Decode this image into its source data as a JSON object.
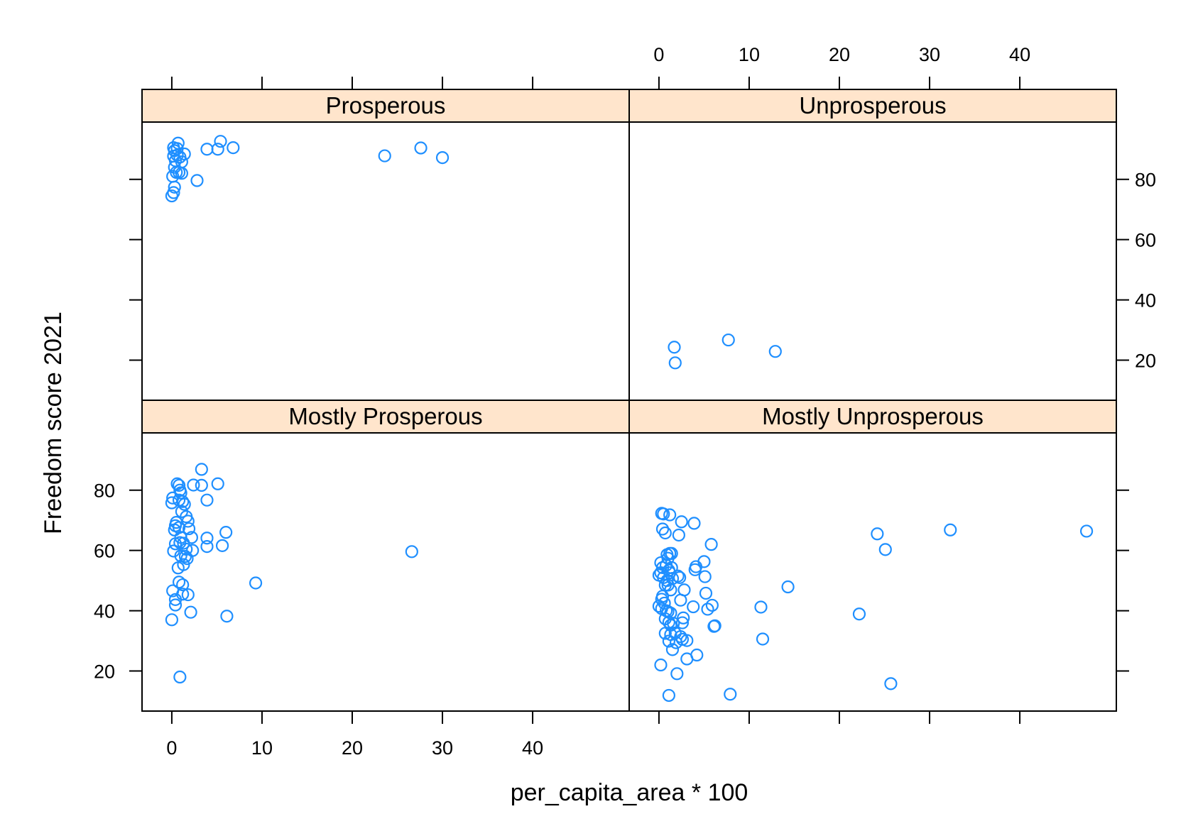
{
  "chart_data": {
    "type": "scatter",
    "layout": "2x2 trellis (lattice xyplot)",
    "xlabel": "per_capita_area * 100",
    "ylabel": "Freedom score 2021",
    "xlim": [
      -3.3,
      50.7
    ],
    "ylim": [
      6.7,
      99
    ],
    "x_ticks": [
      0,
      10,
      20,
      30,
      40
    ],
    "y_ticks": [
      20,
      40,
      60,
      80
    ],
    "grid": false,
    "colors": {
      "point": "#1f8fff",
      "strip": "#ffe5cc",
      "frame": "#000000"
    },
    "panels": [
      {
        "name": "Prosperous",
        "row": 0,
        "col": 0,
        "points": [
          [
            0.0,
            74.5
          ],
          [
            0.2,
            75.6
          ],
          [
            0.3,
            77.4
          ],
          [
            0.1,
            81.0
          ],
          [
            0.5,
            82.3
          ],
          [
            0.3,
            84.0
          ],
          [
            0.4,
            86.2
          ],
          [
            0.2,
            87.7
          ],
          [
            0.3,
            89.5
          ],
          [
            0.2,
            90.5
          ],
          [
            0.6,
            90.2
          ],
          [
            0.7,
            92.0
          ],
          [
            0.6,
            88.0
          ],
          [
            0.9,
            87.4
          ],
          [
            1.1,
            85.8
          ],
          [
            0.8,
            82.3
          ],
          [
            1.1,
            82.0
          ],
          [
            1.4,
            88.4
          ],
          [
            2.8,
            79.6
          ],
          [
            3.9,
            90.0
          ],
          [
            5.1,
            90.0
          ],
          [
            5.4,
            92.6
          ],
          [
            6.8,
            90.5
          ],
          [
            23.6,
            87.8
          ],
          [
            27.6,
            90.4
          ],
          [
            30.0,
            87.2
          ]
        ]
      },
      {
        "name": "Unprosperous",
        "row": 0,
        "col": 1,
        "points": [
          [
            1.7,
            24.3
          ],
          [
            1.8,
            19.1
          ],
          [
            7.7,
            26.7
          ],
          [
            12.9,
            22.9
          ]
        ]
      },
      {
        "name": "Mostly Prosperous",
        "row": 1,
        "col": 0,
        "points": [
          [
            0.0,
            37.0
          ],
          [
            0.1,
            46.6
          ],
          [
            0.4,
            41.9
          ],
          [
            0.4,
            43.7
          ],
          [
            0.2,
            59.8
          ],
          [
            0.4,
            62.2
          ],
          [
            0.3,
            66.8
          ],
          [
            0.4,
            68.2
          ],
          [
            0.5,
            69.3
          ],
          [
            0.0,
            75.8
          ],
          [
            0.1,
            77.4
          ],
          [
            0.6,
            82.1
          ],
          [
            0.8,
            81.6
          ],
          [
            0.9,
            80.0
          ],
          [
            1.0,
            79.1
          ],
          [
            0.8,
            76.7
          ],
          [
            1.2,
            76.2
          ],
          [
            1.4,
            75.3
          ],
          [
            1.1,
            72.9
          ],
          [
            1.6,
            71.2
          ],
          [
            1.8,
            69.7
          ],
          [
            1.9,
            67.2
          ],
          [
            0.8,
            67.6
          ],
          [
            1.0,
            64.3
          ],
          [
            0.9,
            62.6
          ],
          [
            1.3,
            62.4
          ],
          [
            1.6,
            60.4
          ],
          [
            1.0,
            58.2
          ],
          [
            1.5,
            58.0
          ],
          [
            1.7,
            57.3
          ],
          [
            1.3,
            55.3
          ],
          [
            0.7,
            54.2
          ],
          [
            0.8,
            49.5
          ],
          [
            1.2,
            48.6
          ],
          [
            1.2,
            45.5
          ],
          [
            1.8,
            45.3
          ],
          [
            2.1,
            39.5
          ],
          [
            0.9,
            18.0
          ],
          [
            2.2,
            64.3
          ],
          [
            2.3,
            60.0
          ],
          [
            2.4,
            81.7
          ],
          [
            3.3,
            86.9
          ],
          [
            3.3,
            81.6
          ],
          [
            3.9,
            76.7
          ],
          [
            3.9,
            64.1
          ],
          [
            3.9,
            61.3
          ],
          [
            5.1,
            82.1
          ],
          [
            5.6,
            61.6
          ],
          [
            6.0,
            66.0
          ],
          [
            6.1,
            38.2
          ],
          [
            9.3,
            49.2
          ],
          [
            26.6,
            59.6
          ]
        ]
      },
      {
        "name": "Mostly Unprosperous",
        "row": 1,
        "col": 1,
        "points": [
          [
            0.2,
            22.0
          ],
          [
            0.0,
            41.5
          ],
          [
            0.3,
            40.7
          ],
          [
            0.3,
            43.8
          ],
          [
            0.4,
            44.8
          ],
          [
            0.0,
            51.8
          ],
          [
            0.2,
            52.6
          ],
          [
            0.2,
            55.9
          ],
          [
            0.4,
            54.3
          ],
          [
            0.5,
            51.0
          ],
          [
            0.4,
            67.1
          ],
          [
            0.3,
            72.3
          ],
          [
            0.5,
            72.1
          ],
          [
            0.7,
            65.8
          ],
          [
            1.2,
            71.8
          ],
          [
            0.9,
            58.6
          ],
          [
            1.0,
            57.4
          ],
          [
            1.2,
            59.0
          ],
          [
            1.4,
            59.0
          ],
          [
            0.8,
            55.1
          ],
          [
            1.1,
            53.4
          ],
          [
            1.2,
            52.6
          ],
          [
            1.4,
            54.3
          ],
          [
            1.5,
            50.7
          ],
          [
            0.9,
            50.0
          ],
          [
            0.7,
            48.5
          ],
          [
            1.0,
            48.5
          ],
          [
            1.3,
            46.9
          ],
          [
            0.6,
            42.5
          ],
          [
            0.8,
            40.0
          ],
          [
            1.0,
            39.7
          ],
          [
            1.3,
            39.2
          ],
          [
            0.7,
            37.3
          ],
          [
            1.1,
            36.2
          ],
          [
            1.3,
            35.2
          ],
          [
            1.6,
            35.8
          ],
          [
            0.7,
            32.5
          ],
          [
            1.3,
            32.1
          ],
          [
            1.8,
            32.6
          ],
          [
            1.1,
            29.9
          ],
          [
            1.5,
            27.1
          ],
          [
            1.9,
            29.4
          ],
          [
            1.1,
            11.9
          ],
          [
            2.0,
            19.1
          ],
          [
            2.1,
            51.5
          ],
          [
            2.3,
            51.0
          ],
          [
            2.4,
            43.5
          ],
          [
            2.8,
            46.9
          ],
          [
            2.2,
            65.1
          ],
          [
            2.5,
            69.5
          ],
          [
            2.7,
            37.6
          ],
          [
            2.4,
            31.4
          ],
          [
            2.6,
            36.0
          ],
          [
            3.1,
            30.1
          ],
          [
            3.1,
            24.0
          ],
          [
            2.6,
            30.5
          ],
          [
            3.8,
            41.3
          ],
          [
            4.1,
            54.6
          ],
          [
            4.0,
            53.6
          ],
          [
            4.2,
            25.3
          ],
          [
            3.9,
            69.0
          ],
          [
            5.0,
            56.3
          ],
          [
            5.1,
            51.3
          ],
          [
            5.2,
            45.8
          ],
          [
            5.4,
            40.5
          ],
          [
            5.9,
            41.8
          ],
          [
            6.2,
            35.0
          ],
          [
            6.1,
            34.8
          ],
          [
            5.8,
            62.0
          ],
          [
            7.9,
            12.3
          ],
          [
            11.3,
            41.2
          ],
          [
            11.5,
            30.6
          ],
          [
            14.3,
            47.9
          ],
          [
            22.2,
            38.9
          ],
          [
            24.2,
            65.5
          ],
          [
            25.1,
            60.3
          ],
          [
            25.7,
            15.8
          ],
          [
            32.3,
            66.8
          ],
          [
            47.4,
            66.4
          ]
        ]
      }
    ]
  }
}
